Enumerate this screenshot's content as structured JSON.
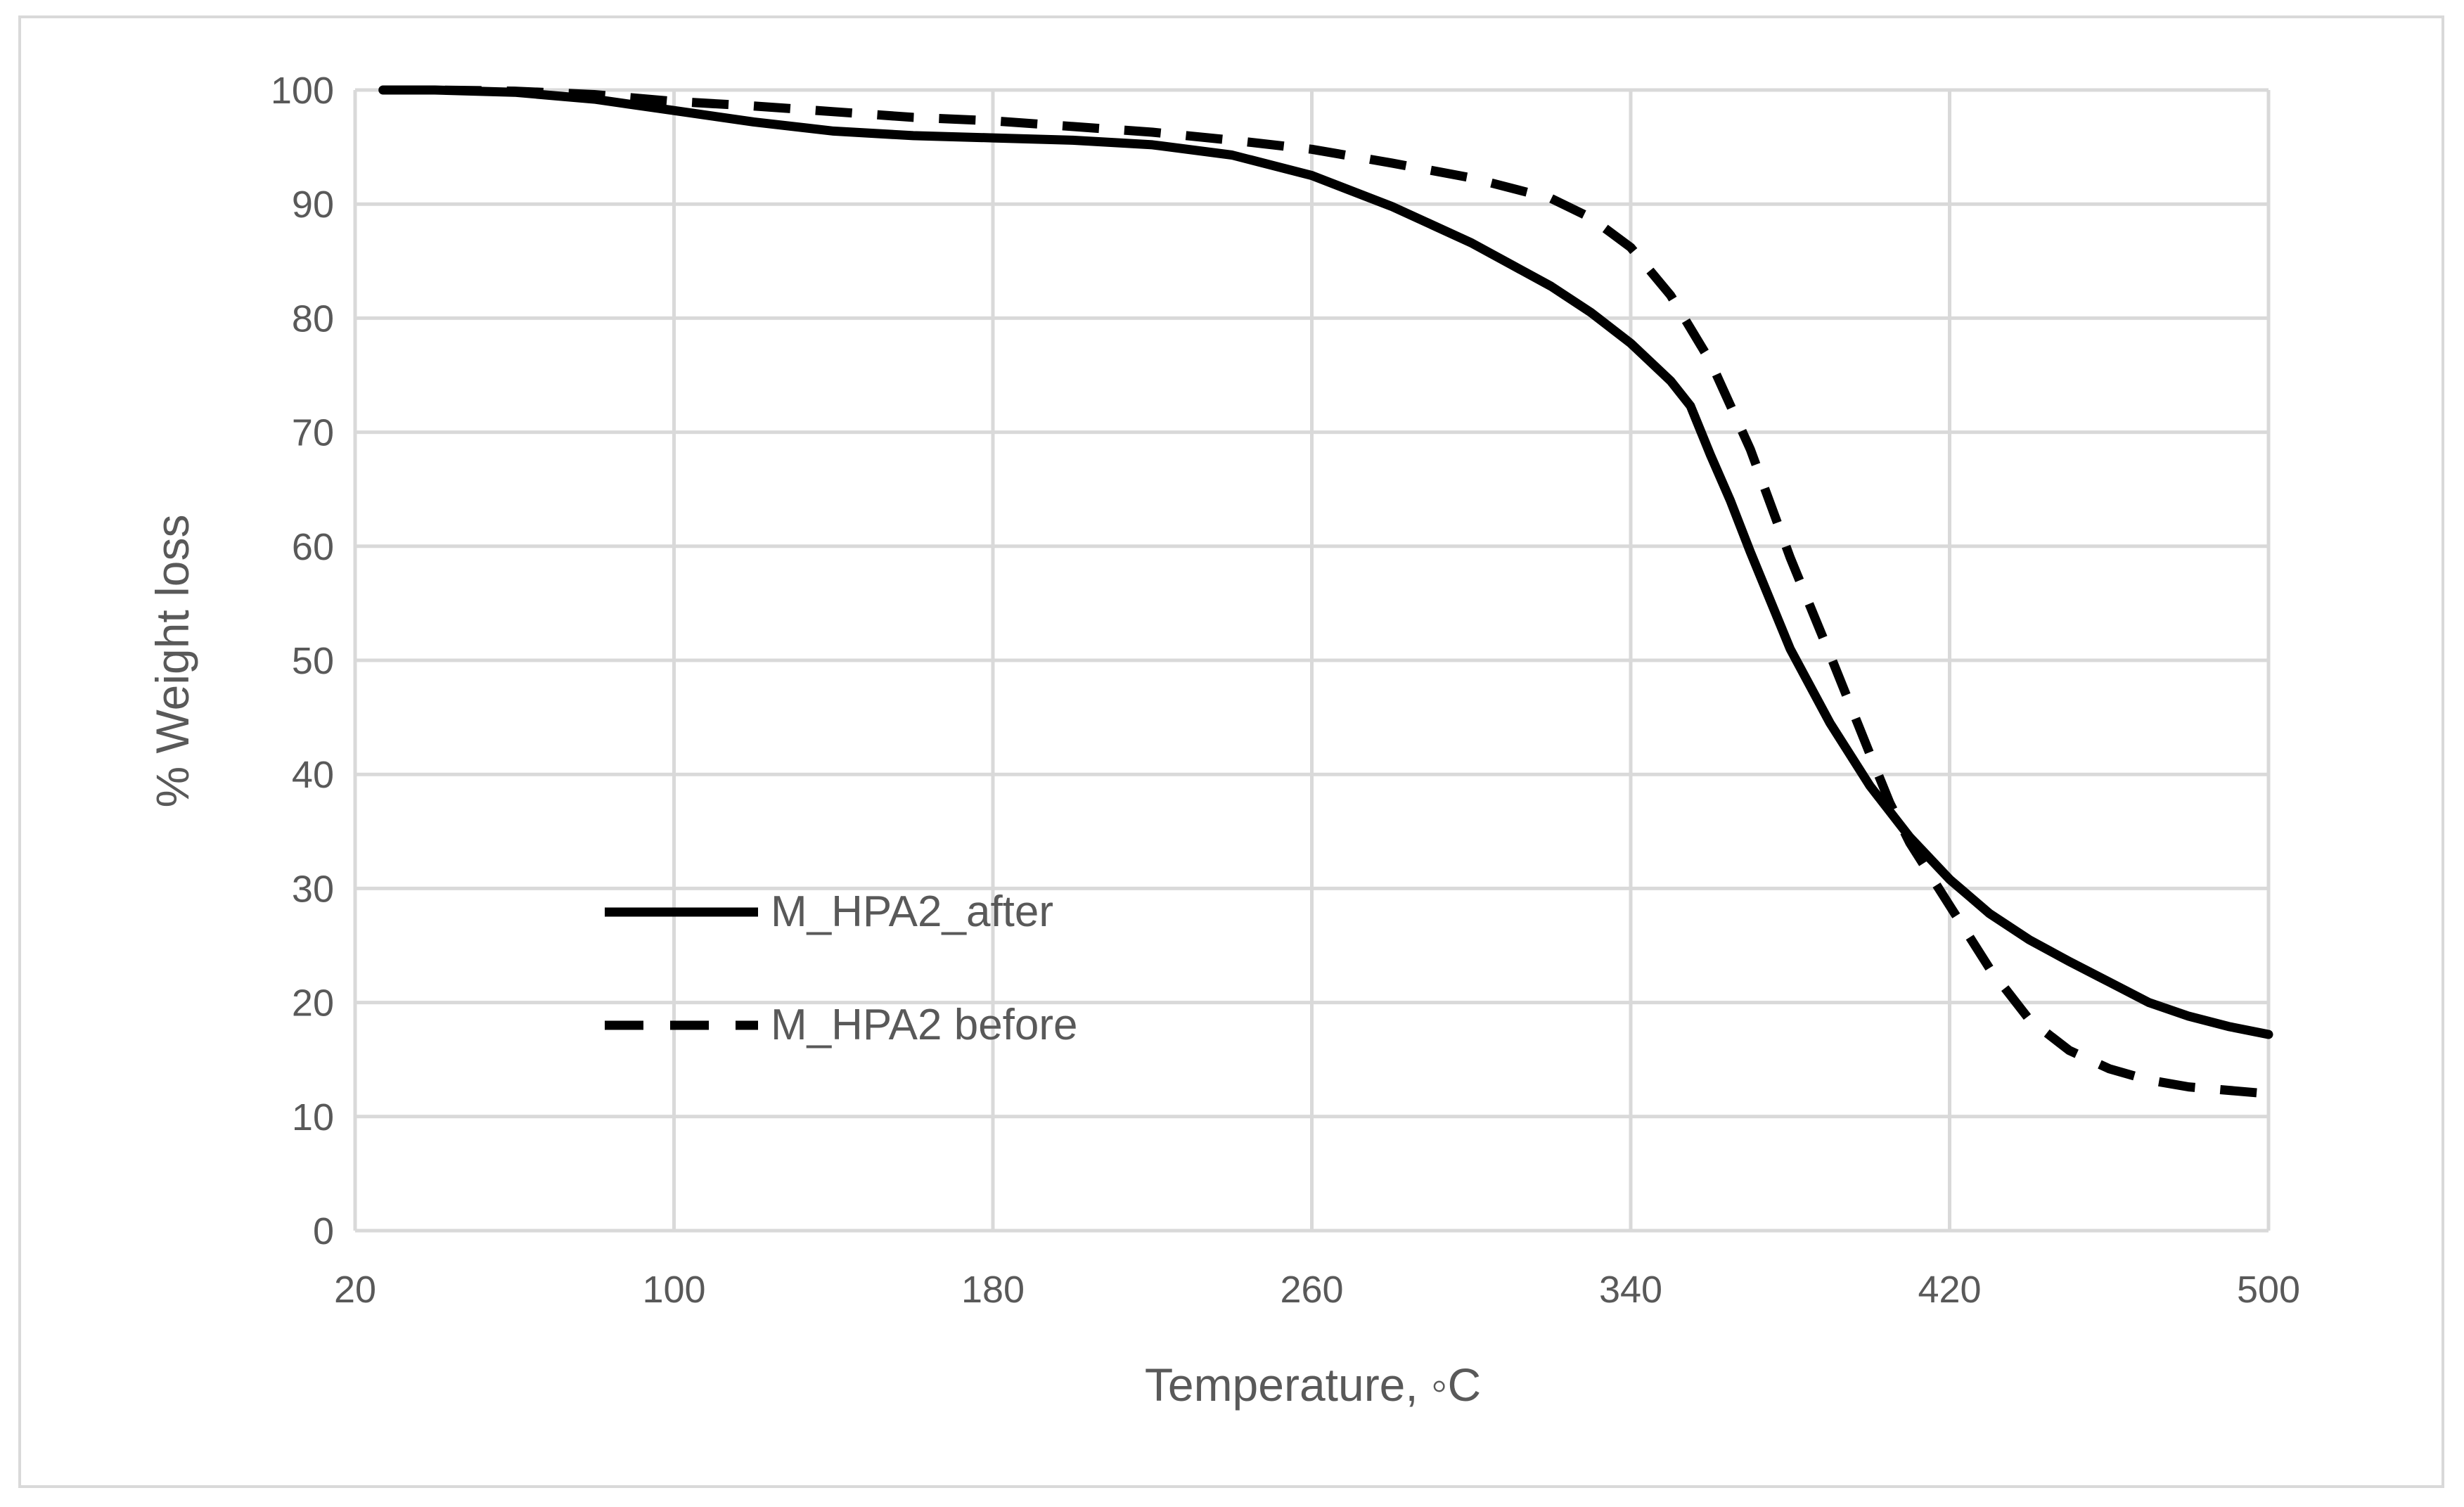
{
  "chart_data": {
    "type": "line",
    "title": "",
    "xlabel": "Temperature, ◦C",
    "ylabel": "% Weight loss",
    "xlim": [
      20,
      500
    ],
    "ylim": [
      0,
      100
    ],
    "x_ticks": [
      20,
      100,
      180,
      260,
      340,
      420,
      500
    ],
    "y_ticks": [
      0,
      10,
      20,
      30,
      40,
      50,
      60,
      70,
      80,
      90,
      100
    ],
    "grid": true,
    "legend_position": "lower-left inside plot",
    "series": [
      {
        "name": "M_HPA2_after",
        "style": "solid",
        "color": "#000000",
        "x": [
          27,
          40,
          60,
          80,
          100,
          120,
          140,
          160,
          180,
          200,
          220,
          240,
          260,
          280,
          300,
          320,
          330,
          340,
          350,
          355,
          360,
          365,
          370,
          380,
          390,
          400,
          410,
          420,
          430,
          440,
          450,
          460,
          470,
          480,
          490,
          500
        ],
        "y": [
          100,
          100,
          99.8,
          99.2,
          98.2,
          97.2,
          96.4,
          96.0,
          95.8,
          95.6,
          95.2,
          94.3,
          92.5,
          89.8,
          86.6,
          82.8,
          80.5,
          77.8,
          74.5,
          72.3,
          68.0,
          64.0,
          59.5,
          51.0,
          44.5,
          39.0,
          34.5,
          30.8,
          27.8,
          25.5,
          23.6,
          21.8,
          20.0,
          18.8,
          17.9,
          17.2
        ]
      },
      {
        "name": "M_HPA2 before",
        "style": "dashed",
        "color": "#000000",
        "x": [
          27,
          40,
          60,
          80,
          100,
          120,
          140,
          160,
          180,
          200,
          220,
          240,
          260,
          280,
          300,
          320,
          330,
          340,
          350,
          360,
          370,
          380,
          390,
          400,
          405,
          410,
          420,
          430,
          440,
          450,
          460,
          470,
          480,
          490,
          500
        ],
        "y": [
          100,
          100,
          99.9,
          99.6,
          99.0,
          98.6,
          98.1,
          97.6,
          97.3,
          96.8,
          96.3,
          95.6,
          94.8,
          93.6,
          92.3,
          90.5,
          88.8,
          86.2,
          82.0,
          76.2,
          68.5,
          59.0,
          50.5,
          41.8,
          37.5,
          34.0,
          28.5,
          23.0,
          18.5,
          15.8,
          14.2,
          13.2,
          12.6,
          12.3,
          12.0
        ]
      }
    ]
  }
}
